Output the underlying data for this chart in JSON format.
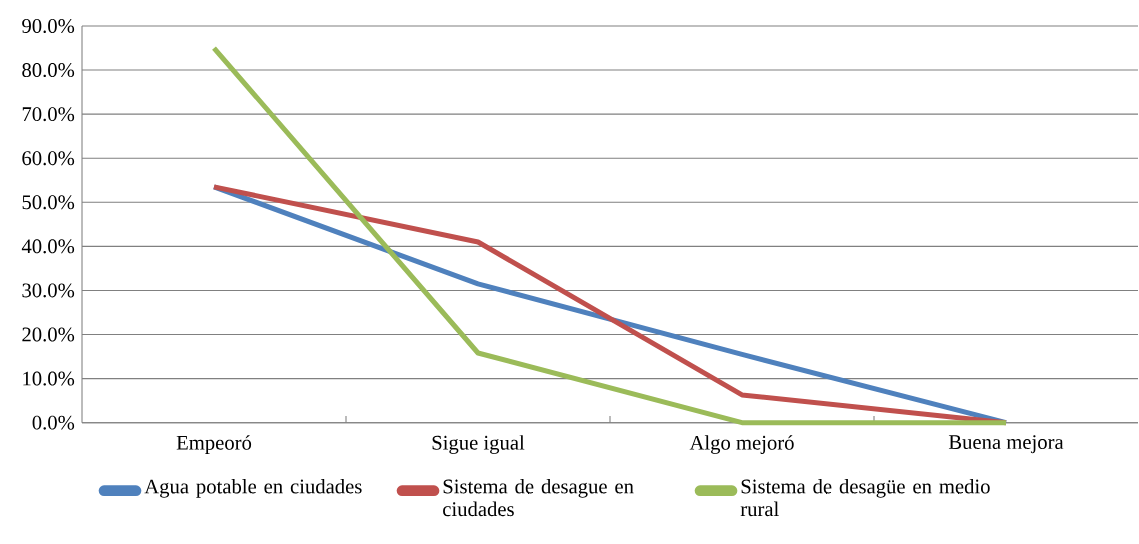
{
  "chart_data": {
    "type": "line",
    "categories": [
      "Empeoró",
      "Sigue igual",
      "Algo mejoró",
      "Buena mejora"
    ],
    "series": [
      {
        "name": "Agua potable en ciudades",
        "color": "#4f81bd",
        "values": [
          53.5,
          31.5,
          15.5,
          0
        ]
      },
      {
        "name": "Sistema de desague en ciudades",
        "color": "#c0504d",
        "values": [
          53.5,
          41,
          6.3,
          0
        ]
      },
      {
        "name": "Sistema de desagüe en medio rural",
        "color": "#9bbb59",
        "values": [
          85,
          15.8,
          0,
          0
        ]
      }
    ],
    "ylim": [
      0,
      90
    ],
    "yticks": [
      {
        "value": 0,
        "label": "0.0%"
      },
      {
        "value": 10,
        "label": "10.0%"
      },
      {
        "value": 20,
        "label": "20.0%"
      },
      {
        "value": 30,
        "label": "30.0%"
      },
      {
        "value": 40,
        "label": "40.0%"
      },
      {
        "value": 50,
        "label": "50.0%"
      },
      {
        "value": 60,
        "label": "60.0%"
      },
      {
        "value": 70,
        "label": "70.0%"
      },
      {
        "value": 80,
        "label": "80.0%"
      },
      {
        "value": 90,
        "label": "90.0%"
      }
    ],
    "grid": "y",
    "legend": "bottom",
    "marker": "none",
    "line_style": "solid"
  }
}
